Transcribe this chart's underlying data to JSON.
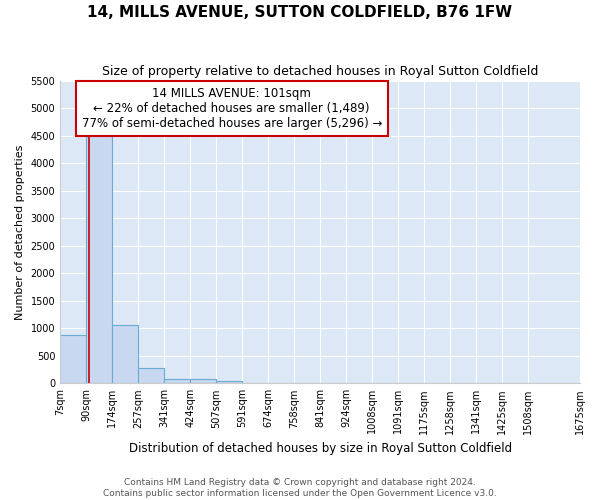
{
  "title": "14, MILLS AVENUE, SUTTON COLDFIELD, B76 1FW",
  "subtitle": "Size of property relative to detached houses in Royal Sutton Coldfield",
  "xlabel": "Distribution of detached houses by size in Royal Sutton Coldfield",
  "ylabel": "Number of detached properties",
  "bar_values": [
    880,
    4560,
    1060,
    275,
    85,
    75,
    50,
    0,
    0,
    0,
    0,
    0,
    0,
    0,
    0,
    0,
    0,
    0,
    0
  ],
  "bin_edges": [
    7,
    90,
    174,
    257,
    341,
    424,
    507,
    591,
    674,
    758,
    841,
    924,
    1008,
    1091,
    1175,
    1258,
    1341,
    1425,
    1508,
    1675
  ],
  "tick_labels": [
    "7sqm",
    "90sqm",
    "174sqm",
    "257sqm",
    "341sqm",
    "424sqm",
    "507sqm",
    "591sqm",
    "674sqm",
    "758sqm",
    "841sqm",
    "924sqm",
    "1008sqm",
    "1091sqm",
    "1175sqm",
    "1258sqm",
    "1341sqm",
    "1425sqm",
    "1508sqm",
    "1675sqm"
  ],
  "bar_color": "#c8d8f0",
  "bar_edge_color": "#6aaad4",
  "subject_size": 101,
  "vline_color": "#cc0000",
  "annotation_line1": "14 MILLS AVENUE: 101sqm",
  "annotation_line2": "← 22% of detached houses are smaller (1,489)",
  "annotation_line3": "77% of semi-detached houses are larger (5,296) →",
  "annotation_box_color": "#cc0000",
  "ylim": [
    0,
    5500
  ],
  "yticks": [
    0,
    500,
    1000,
    1500,
    2000,
    2500,
    3000,
    3500,
    4000,
    4500,
    5000,
    5500
  ],
  "fig_background_color": "#ffffff",
  "plot_background_color": "#dce8f5",
  "grid_color": "#ffffff",
  "footer_line1": "Contains HM Land Registry data © Crown copyright and database right 2024.",
  "footer_line2": "Contains public sector information licensed under the Open Government Licence v3.0.",
  "title_fontsize": 11,
  "subtitle_fontsize": 9,
  "xlabel_fontsize": 8.5,
  "ylabel_fontsize": 8,
  "tick_fontsize": 7,
  "annotation_fontsize": 8.5,
  "footer_fontsize": 6.5
}
